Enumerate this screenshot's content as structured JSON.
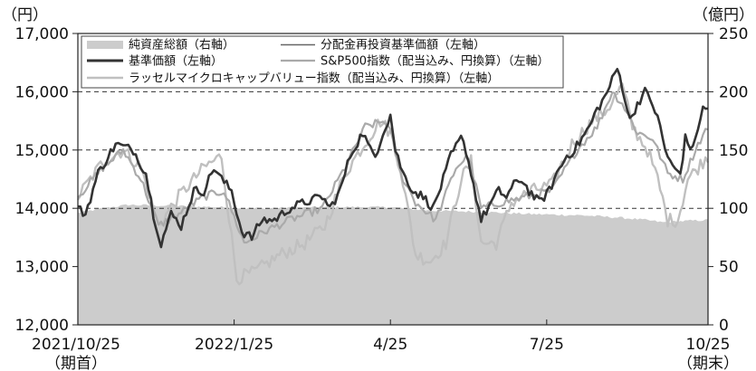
{
  "chart_data": {
    "type": "line",
    "y_left_unit": "（円）",
    "y_right_unit": "（億円）",
    "ylim_left": [
      12000,
      17000
    ],
    "ylim_right": [
      0,
      250
    ],
    "y_left_ticks": [
      "12,000",
      "13,000",
      "14,000",
      "15,000",
      "16,000",
      "17,000"
    ],
    "y_right_ticks": [
      "0",
      "50",
      "100",
      "150",
      "200",
      "250"
    ],
    "dashed_gridlines_left": [
      14000,
      15000,
      16000
    ],
    "x_ticks": [
      {
        "label": "2021/10/25",
        "sub": "（期首）",
        "index": 0
      },
      {
        "label": "2022/1/25",
        "sub": "",
        "index": 62
      },
      {
        "label": "4/25",
        "sub": "",
        "index": 124
      },
      {
        "label": "7/25",
        "sub": "",
        "index": 186
      },
      {
        "label": "10/25",
        "sub": "（期末）",
        "index": 250
      }
    ],
    "n_points": 251,
    "legend_position": "top-left",
    "series": [
      {
        "name": "純資産総額（右軸）",
        "role": "area",
        "axis": "right",
        "color": "#cccccc",
        "anchors": [
          [
            0,
            96
          ],
          [
            10,
            100
          ],
          [
            20,
            103
          ],
          [
            40,
            102
          ],
          [
            70,
            100
          ],
          [
            100,
            101
          ],
          [
            124,
            101
          ],
          [
            140,
            98
          ],
          [
            160,
            97
          ],
          [
            180,
            95
          ],
          [
            200,
            94
          ],
          [
            215,
            92
          ],
          [
            225,
            90
          ],
          [
            232,
            88
          ],
          [
            240,
            89
          ],
          [
            250,
            90
          ]
        ]
      },
      {
        "name": "分配金再投資基準価額（左軸）",
        "role": "line",
        "axis": "left",
        "color": "#666666",
        "note": "same as 基準価額 (no distributions)"
      },
      {
        "name": "基準価額（左軸）",
        "role": "line",
        "axis": "left",
        "color": "#333333",
        "anchors": [
          [
            0,
            14000
          ],
          [
            3,
            13900
          ],
          [
            8,
            14600
          ],
          [
            15,
            15100
          ],
          [
            22,
            15000
          ],
          [
            27,
            14600
          ],
          [
            30,
            13900
          ],
          [
            33,
            13400
          ],
          [
            37,
            13900
          ],
          [
            41,
            13700
          ],
          [
            46,
            14300
          ],
          [
            50,
            14300
          ],
          [
            54,
            14700
          ],
          [
            57,
            14500
          ],
          [
            61,
            14300
          ],
          [
            65,
            13600
          ],
          [
            69,
            13500
          ],
          [
            73,
            13800
          ],
          [
            78,
            13800
          ],
          [
            84,
            14000
          ],
          [
            90,
            14100
          ],
          [
            97,
            14200
          ],
          [
            100,
            14000
          ],
          [
            104,
            14300
          ],
          [
            108,
            14900
          ],
          [
            113,
            15300
          ],
          [
            116,
            15000
          ],
          [
            118,
            14900
          ],
          [
            121,
            15300
          ],
          [
            124,
            15600
          ],
          [
            126,
            15000
          ],
          [
            129,
            14600
          ],
          [
            133,
            14300
          ],
          [
            137,
            14200
          ],
          [
            141,
            14000
          ],
          [
            145,
            14500
          ],
          [
            148,
            14900
          ],
          [
            152,
            15200
          ],
          [
            154,
            15000
          ],
          [
            157,
            14400
          ],
          [
            160,
            13800
          ],
          [
            164,
            14100
          ],
          [
            167,
            14300
          ],
          [
            170,
            14200
          ],
          [
            173,
            14400
          ],
          [
            176,
            14500
          ],
          [
            179,
            14300
          ],
          [
            183,
            14100
          ],
          [
            187,
            14300
          ],
          [
            190,
            14600
          ],
          [
            194,
            14900
          ],
          [
            197,
            15000
          ],
          [
            200,
            15200
          ],
          [
            203,
            15400
          ],
          [
            206,
            15700
          ],
          [
            209,
            15900
          ],
          [
            212,
            16200
          ],
          [
            214,
            16400
          ],
          [
            216,
            16100
          ],
          [
            219,
            15500
          ],
          [
            222,
            15800
          ],
          [
            225,
            16000
          ],
          [
            228,
            15800
          ],
          [
            231,
            15400
          ],
          [
            233,
            15000
          ],
          [
            236,
            14700
          ],
          [
            239,
            14600
          ],
          [
            241,
            15200
          ],
          [
            244,
            15000
          ],
          [
            246,
            15400
          ],
          [
            248,
            15700
          ],
          [
            250,
            15700
          ]
        ]
      },
      {
        "name": "S&P500指数（配当込み、円換算）（左軸）",
        "role": "line",
        "axis": "left",
        "color": "#aaaaaa",
        "anchors": [
          [
            0,
            14200
          ],
          [
            10,
            14700
          ],
          [
            18,
            15000
          ],
          [
            25,
            14500
          ],
          [
            32,
            13700
          ],
          [
            40,
            13900
          ],
          [
            50,
            14200
          ],
          [
            58,
            14300
          ],
          [
            66,
            13400
          ],
          [
            74,
            13600
          ],
          [
            84,
            13800
          ],
          [
            97,
            14000
          ],
          [
            106,
            14700
          ],
          [
            114,
            15400
          ],
          [
            122,
            15500
          ],
          [
            124,
            15300
          ],
          [
            128,
            14600
          ],
          [
            134,
            14100
          ],
          [
            142,
            13800
          ],
          [
            150,
            14700
          ],
          [
            155,
            14900
          ],
          [
            160,
            14000
          ],
          [
            168,
            14100
          ],
          [
            178,
            14200
          ],
          [
            188,
            14300
          ],
          [
            198,
            15000
          ],
          [
            206,
            15400
          ],
          [
            212,
            16000
          ],
          [
            216,
            15800
          ],
          [
            222,
            15300
          ],
          [
            228,
            15200
          ],
          [
            234,
            14600
          ],
          [
            240,
            14500
          ],
          [
            246,
            15100
          ],
          [
            250,
            15400
          ]
        ]
      },
      {
        "name": "ラッセルマイクロキャップバリュー指数（配当込み、円換算）（左軸）",
        "role": "line",
        "axis": "left",
        "color": "#c0c0c0",
        "anchors": [
          [
            0,
            14200
          ],
          [
            10,
            14800
          ],
          [
            18,
            15000
          ],
          [
            25,
            14700
          ],
          [
            32,
            13700
          ],
          [
            40,
            14200
          ],
          [
            50,
            14700
          ],
          [
            57,
            14900
          ],
          [
            63,
            12800
          ],
          [
            70,
            12900
          ],
          [
            80,
            13200
          ],
          [
            90,
            13400
          ],
          [
            98,
            13700
          ],
          [
            106,
            14600
          ],
          [
            112,
            15000
          ],
          [
            120,
            15500
          ],
          [
            124,
            15300
          ],
          [
            128,
            14700
          ],
          [
            134,
            13200
          ],
          [
            140,
            13100
          ],
          [
            146,
            13400
          ],
          [
            152,
            14500
          ],
          [
            156,
            14800
          ],
          [
            160,
            13400
          ],
          [
            166,
            13400
          ],
          [
            172,
            14100
          ],
          [
            180,
            14300
          ],
          [
            188,
            14400
          ],
          [
            196,
            15100
          ],
          [
            204,
            15500
          ],
          [
            210,
            15700
          ],
          [
            216,
            16100
          ],
          [
            220,
            15400
          ],
          [
            226,
            15000
          ],
          [
            230,
            14500
          ],
          [
            234,
            13800
          ],
          [
            238,
            13800
          ],
          [
            242,
            14500
          ],
          [
            246,
            14700
          ],
          [
            250,
            14900
          ]
        ]
      }
    ]
  }
}
